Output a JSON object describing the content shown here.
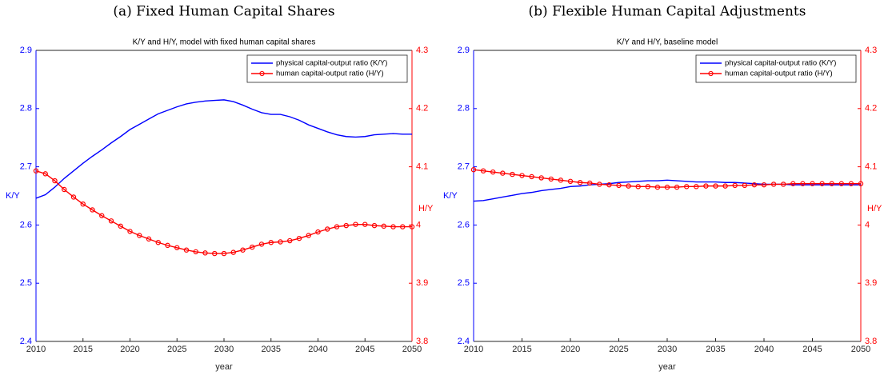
{
  "chart_data": [
    {
      "type": "line",
      "caption": "(a) Fixed Human Capital Shares",
      "title": "K/Y and H/Y, model with fixed human capital shares",
      "xlabel": "year",
      "ylabel": "K/Y",
      "y2label": "H/Y",
      "x": [
        2010,
        2011,
        2012,
        2013,
        2014,
        2015,
        2016,
        2017,
        2018,
        2019,
        2020,
        2021,
        2022,
        2023,
        2024,
        2025,
        2026,
        2027,
        2028,
        2029,
        2030,
        2031,
        2032,
        2033,
        2034,
        2035,
        2036,
        2037,
        2038,
        2039,
        2040,
        2041,
        2042,
        2043,
        2044,
        2045,
        2046,
        2047,
        2048,
        2049,
        2050
      ],
      "series": [
        {
          "name": "physical capital-output ratio (K/Y)",
          "color": "#0000ff",
          "axis": "y",
          "values": [
            2.646,
            2.652,
            2.665,
            2.68,
            2.693,
            2.706,
            2.718,
            2.729,
            2.741,
            2.752,
            2.764,
            2.773,
            2.782,
            2.791,
            2.797,
            2.803,
            2.808,
            2.811,
            2.813,
            2.814,
            2.815,
            2.812,
            2.806,
            2.799,
            2.793,
            2.79,
            2.79,
            2.786,
            2.78,
            2.772,
            2.766,
            2.76,
            2.755,
            2.752,
            2.751,
            2.752,
            2.755,
            2.756,
            2.757,
            2.756,
            2.756
          ]
        },
        {
          "name": "human capital-output ratio (H/Y)",
          "color": "#ff0000",
          "axis": "y2",
          "marker": "circle",
          "values": [
            4.093,
            4.088,
            4.076,
            4.061,
            4.048,
            4.036,
            4.026,
            4.016,
            4.007,
            3.998,
            3.989,
            3.982,
            3.976,
            3.97,
            3.965,
            3.961,
            3.957,
            3.954,
            3.952,
            3.951,
            3.951,
            3.953,
            3.957,
            3.962,
            3.967,
            3.97,
            3.971,
            3.973,
            3.977,
            3.982,
            3.988,
            3.993,
            3.997,
            3.999,
            4.001,
            4.001,
            3.999,
            3.998,
            3.997,
            3.997,
            3.997
          ]
        }
      ],
      "xlim": [
        2010,
        2050
      ],
      "xticks": [
        2010,
        2015,
        2020,
        2025,
        2030,
        2035,
        2040,
        2045,
        2050
      ],
      "ylim": [
        2.4,
        2.9
      ],
      "yticks": [
        2.4,
        2.5,
        2.6,
        2.7,
        2.8,
        2.9
      ],
      "y2lim": [
        3.8,
        4.3
      ],
      "y2ticks": [
        3.8,
        3.9,
        4,
        4.1,
        4.2,
        4.3
      ],
      "legend": "top-right"
    },
    {
      "type": "line",
      "caption": "(b) Flexible Human Capital Adjustments",
      "title": "K/Y and H/Y, baseline model",
      "xlabel": "year",
      "ylabel": "K/Y",
      "y2label": "H/Y",
      "x": [
        2010,
        2011,
        2012,
        2013,
        2014,
        2015,
        2016,
        2017,
        2018,
        2019,
        2020,
        2021,
        2022,
        2023,
        2024,
        2025,
        2026,
        2027,
        2028,
        2029,
        2030,
        2031,
        2032,
        2033,
        2034,
        2035,
        2036,
        2037,
        2038,
        2039,
        2040,
        2041,
        2042,
        2043,
        2044,
        2045,
        2046,
        2047,
        2048,
        2049,
        2050
      ],
      "series": [
        {
          "name": "physical capital-output ratio (K/Y)",
          "color": "#0000ff",
          "axis": "y",
          "values": [
            2.641,
            2.642,
            2.645,
            2.648,
            2.651,
            2.654,
            2.656,
            2.659,
            2.661,
            2.663,
            2.666,
            2.667,
            2.669,
            2.67,
            2.671,
            2.673,
            2.674,
            2.675,
            2.676,
            2.676,
            2.677,
            2.676,
            2.675,
            2.674,
            2.674,
            2.674,
            2.673,
            2.673,
            2.672,
            2.671,
            2.67,
            2.67,
            2.67,
            2.669,
            2.669,
            2.669,
            2.669,
            2.669,
            2.669,
            2.669,
            2.669
          ]
        },
        {
          "name": "human capital-output ratio (H/Y)",
          "color": "#ff0000",
          "axis": "y2",
          "marker": "circle",
          "values": [
            4.095,
            4.093,
            4.091,
            4.089,
            4.087,
            4.085,
            4.083,
            4.081,
            4.079,
            4.077,
            4.075,
            4.073,
            4.072,
            4.07,
            4.069,
            4.068,
            4.067,
            4.066,
            4.066,
            4.065,
            4.065,
            4.065,
            4.066,
            4.066,
            4.067,
            4.067,
            4.067,
            4.068,
            4.068,
            4.069,
            4.069,
            4.07,
            4.07,
            4.071,
            4.071,
            4.071,
            4.071,
            4.071,
            4.071,
            4.071,
            4.071
          ]
        }
      ],
      "xlim": [
        2010,
        2050
      ],
      "xticks": [
        2010,
        2015,
        2020,
        2025,
        2030,
        2035,
        2040,
        2045,
        2050
      ],
      "ylim": [
        2.4,
        2.9
      ],
      "yticks": [
        2.4,
        2.5,
        2.6,
        2.7,
        2.8,
        2.9
      ],
      "y2lim": [
        3.8,
        4.3
      ],
      "y2ticks": [
        3.8,
        3.9,
        4,
        4.1,
        4.2,
        4.3
      ],
      "legend": "top-right"
    }
  ]
}
